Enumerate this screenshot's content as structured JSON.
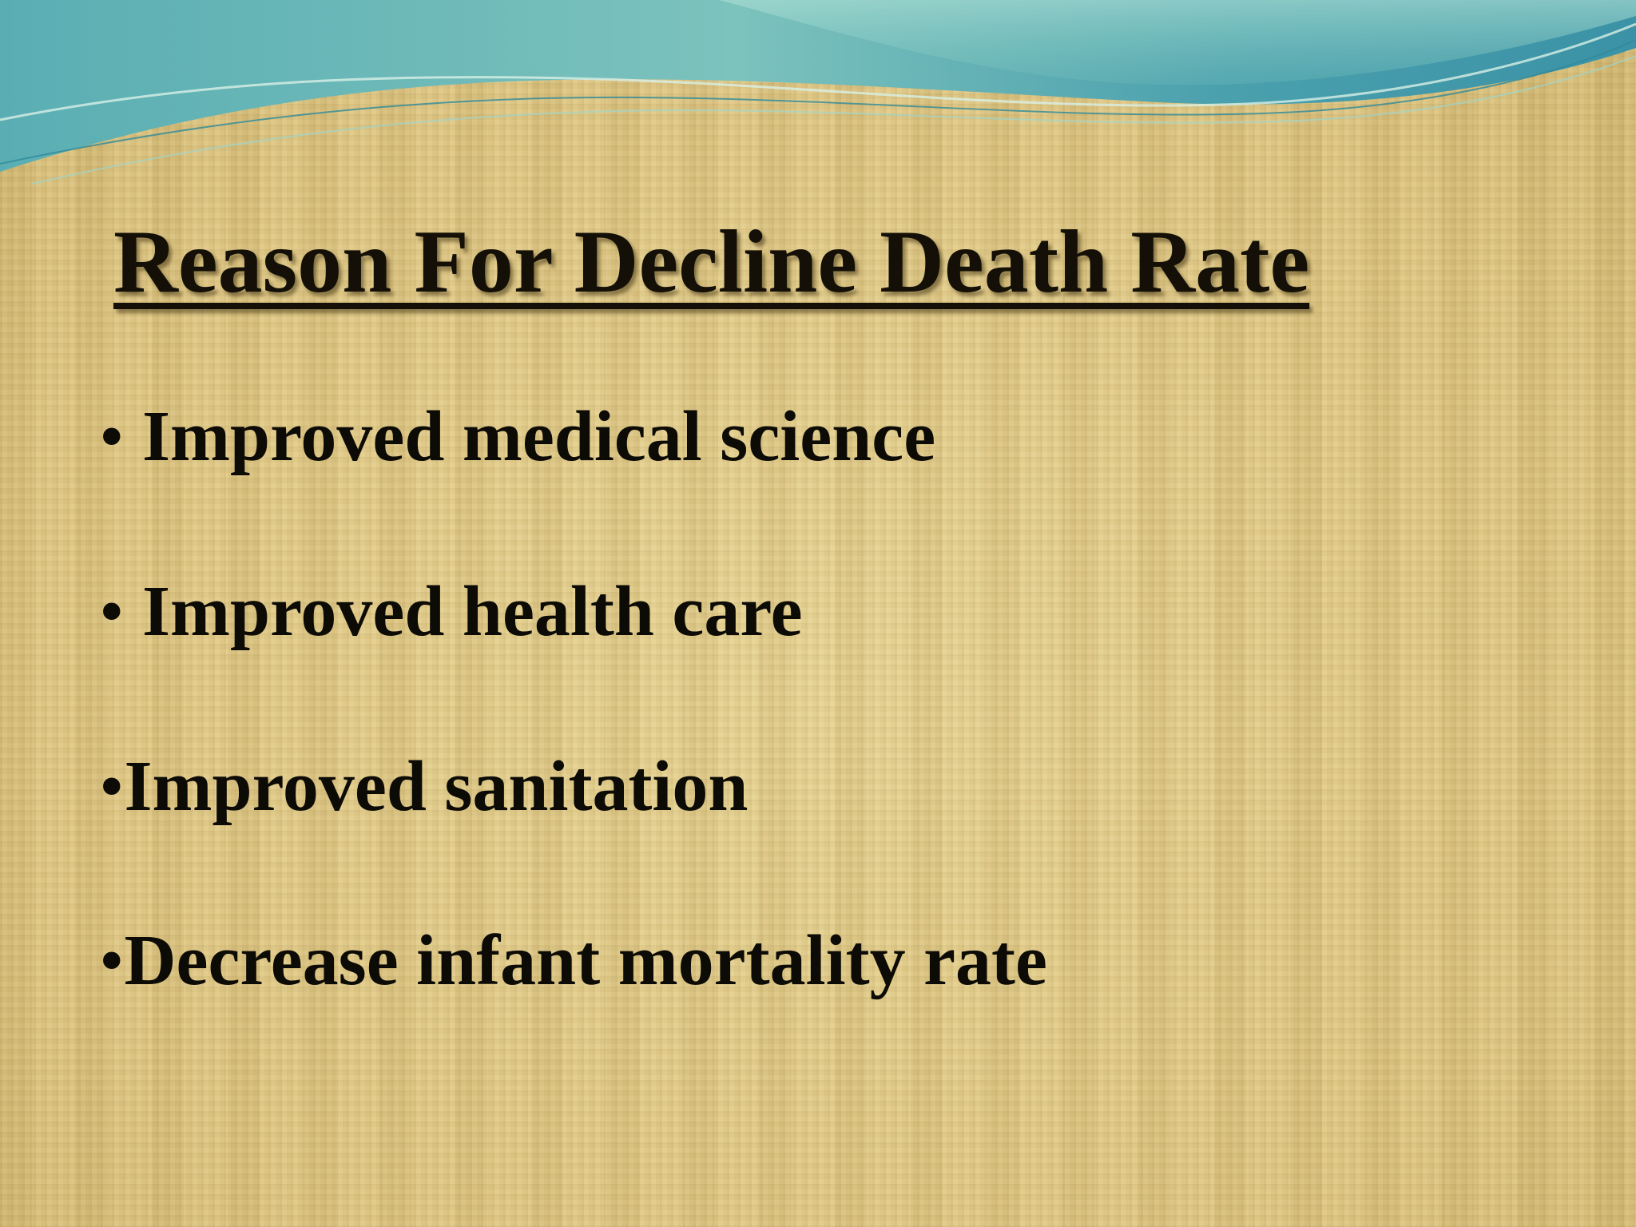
{
  "slide": {
    "title": "Reason For Decline Death Rate",
    "bullets": [
      {
        "marker": "• ",
        "text": "Improved medical science"
      },
      {
        "marker": "• ",
        "text": "Improved health care"
      },
      {
        "marker": "•",
        "text": "Improved sanitation"
      },
      {
        "marker": "•",
        "text": "Decrease infant mortality rate"
      }
    ]
  },
  "colors": {
    "background": "#e2cc8a",
    "wave_dark": "#3f9aa6",
    "wave_light": "#8fd0c8",
    "text": "#141007"
  }
}
